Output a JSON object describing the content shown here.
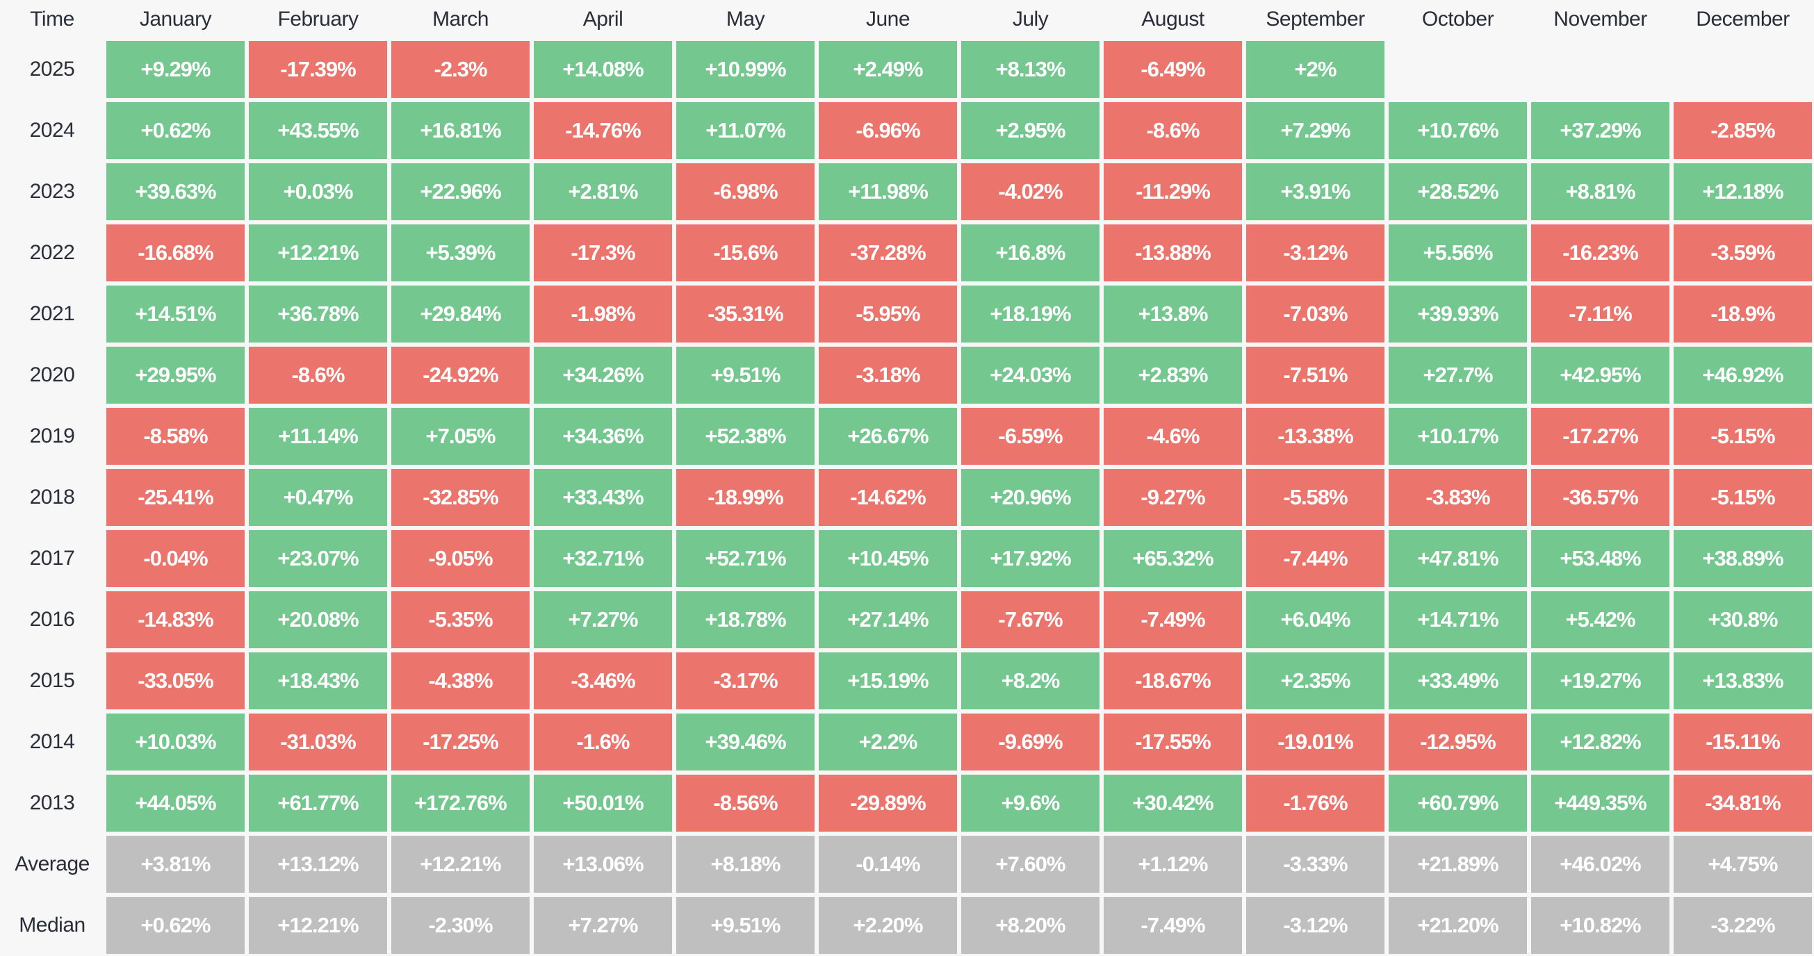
{
  "chart_data": {
    "type": "heatmap",
    "corner_label": "Time",
    "columns": [
      "January",
      "February",
      "March",
      "April",
      "May",
      "June",
      "July",
      "August",
      "September",
      "October",
      "November",
      "December"
    ],
    "rows": [
      {
        "label": "2025",
        "kind": "year",
        "cells": [
          "+9.29%",
          "-17.39%",
          "-2.3%",
          "+14.08%",
          "+10.99%",
          "+2.49%",
          "+8.13%",
          "-6.49%",
          "+2%",
          "",
          "",
          ""
        ]
      },
      {
        "label": "2024",
        "kind": "year",
        "cells": [
          "+0.62%",
          "+43.55%",
          "+16.81%",
          "-14.76%",
          "+11.07%",
          "-6.96%",
          "+2.95%",
          "-8.6%",
          "+7.29%",
          "+10.76%",
          "+37.29%",
          "-2.85%"
        ]
      },
      {
        "label": "2023",
        "kind": "year",
        "cells": [
          "+39.63%",
          "+0.03%",
          "+22.96%",
          "+2.81%",
          "-6.98%",
          "+11.98%",
          "-4.02%",
          "-11.29%",
          "+3.91%",
          "+28.52%",
          "+8.81%",
          "+12.18%"
        ]
      },
      {
        "label": "2022",
        "kind": "year",
        "cells": [
          "-16.68%",
          "+12.21%",
          "+5.39%",
          "-17.3%",
          "-15.6%",
          "-37.28%",
          "+16.8%",
          "-13.88%",
          "-3.12%",
          "+5.56%",
          "-16.23%",
          "-3.59%"
        ]
      },
      {
        "label": "2021",
        "kind": "year",
        "cells": [
          "+14.51%",
          "+36.78%",
          "+29.84%",
          "-1.98%",
          "-35.31%",
          "-5.95%",
          "+18.19%",
          "+13.8%",
          "-7.03%",
          "+39.93%",
          "-7.11%",
          "-18.9%"
        ]
      },
      {
        "label": "2020",
        "kind": "year",
        "cells": [
          "+29.95%",
          "-8.6%",
          "-24.92%",
          "+34.26%",
          "+9.51%",
          "-3.18%",
          "+24.03%",
          "+2.83%",
          "-7.51%",
          "+27.7%",
          "+42.95%",
          "+46.92%"
        ]
      },
      {
        "label": "2019",
        "kind": "year",
        "cells": [
          "-8.58%",
          "+11.14%",
          "+7.05%",
          "+34.36%",
          "+52.38%",
          "+26.67%",
          "-6.59%",
          "-4.6%",
          "-13.38%",
          "+10.17%",
          "-17.27%",
          "-5.15%"
        ]
      },
      {
        "label": "2018",
        "kind": "year",
        "cells": [
          "-25.41%",
          "+0.47%",
          "-32.85%",
          "+33.43%",
          "-18.99%",
          "-14.62%",
          "+20.96%",
          "-9.27%",
          "-5.58%",
          "-3.83%",
          "-36.57%",
          "-5.15%"
        ]
      },
      {
        "label": "2017",
        "kind": "year",
        "cells": [
          "-0.04%",
          "+23.07%",
          "-9.05%",
          "+32.71%",
          "+52.71%",
          "+10.45%",
          "+17.92%",
          "+65.32%",
          "-7.44%",
          "+47.81%",
          "+53.48%",
          "+38.89%"
        ]
      },
      {
        "label": "2016",
        "kind": "year",
        "cells": [
          "-14.83%",
          "+20.08%",
          "-5.35%",
          "+7.27%",
          "+18.78%",
          "+27.14%",
          "-7.67%",
          "-7.49%",
          "+6.04%",
          "+14.71%",
          "+5.42%",
          "+30.8%"
        ]
      },
      {
        "label": "2015",
        "kind": "year",
        "cells": [
          "-33.05%",
          "+18.43%",
          "-4.38%",
          "-3.46%",
          "-3.17%",
          "+15.19%",
          "+8.2%",
          "-18.67%",
          "+2.35%",
          "+33.49%",
          "+19.27%",
          "+13.83%"
        ]
      },
      {
        "label": "2014",
        "kind": "year",
        "cells": [
          "+10.03%",
          "-31.03%",
          "-17.25%",
          "-1.6%",
          "+39.46%",
          "+2.2%",
          "-9.69%",
          "-17.55%",
          "-19.01%",
          "-12.95%",
          "+12.82%",
          "-15.11%"
        ]
      },
      {
        "label": "2013",
        "kind": "year",
        "cells": [
          "+44.05%",
          "+61.77%",
          "+172.76%",
          "+50.01%",
          "-8.56%",
          "-29.89%",
          "+9.6%",
          "+30.42%",
          "-1.76%",
          "+60.79%",
          "+449.35%",
          "-34.81%"
        ]
      },
      {
        "label": "Average",
        "kind": "summary",
        "cells": [
          "+3.81%",
          "+13.12%",
          "+12.21%",
          "+13.06%",
          "+8.18%",
          "-0.14%",
          "+7.60%",
          "+1.12%",
          "-3.33%",
          "+21.89%",
          "+46.02%",
          "+4.75%"
        ]
      },
      {
        "label": "Median",
        "kind": "summary",
        "cells": [
          "+0.62%",
          "+12.21%",
          "-2.30%",
          "+7.27%",
          "+9.51%",
          "+2.20%",
          "+8.20%",
          "-7.49%",
          "-3.12%",
          "+21.20%",
          "+10.82%",
          "-3.22%"
        ]
      }
    ],
    "colors": {
      "positive": "#74c78e",
      "negative": "#eb756c",
      "summary": "#bfbfbf",
      "background": "#f7f7f8",
      "cell_text": "#ffffff",
      "label_text": "#2a2e39"
    },
    "legend_position": "none",
    "grid": false
  }
}
